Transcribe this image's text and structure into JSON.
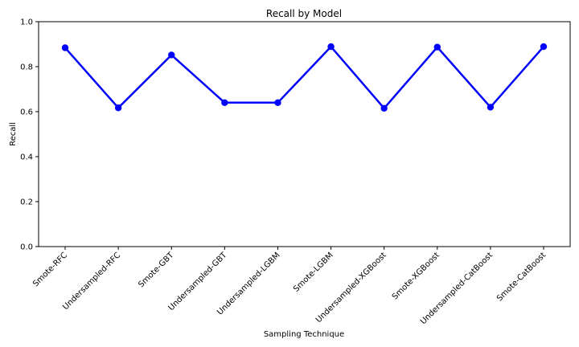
{
  "chart_data": {
    "type": "line",
    "title": "Recall by Model",
    "xlabel": "Sampling Technique",
    "ylabel": "Recall",
    "categories": [
      "Smote-RFC",
      "Undersampled-RFC",
      "Smote-GBT",
      "Undersampled-GBT",
      "Undersampled-LGBM",
      "Smote-LGBM",
      "Undersampled-XGBoost",
      "Smote-XGBoost",
      "Undersampled-CatBoost",
      "Smote-CatBoost"
    ],
    "series": [
      {
        "values": [
          0.884,
          0.617,
          0.852,
          0.64,
          0.64,
          0.889,
          0.615,
          0.887,
          0.62,
          0.889
        ]
      }
    ],
    "ylim": [
      0.0,
      1.0
    ],
    "yticks": [
      "0.0",
      "0.2",
      "0.4",
      "0.6",
      "0.8",
      "1.0"
    ],
    "grid": false,
    "colors": {
      "line": "#0000ff",
      "marker": "#0000ff"
    }
  }
}
